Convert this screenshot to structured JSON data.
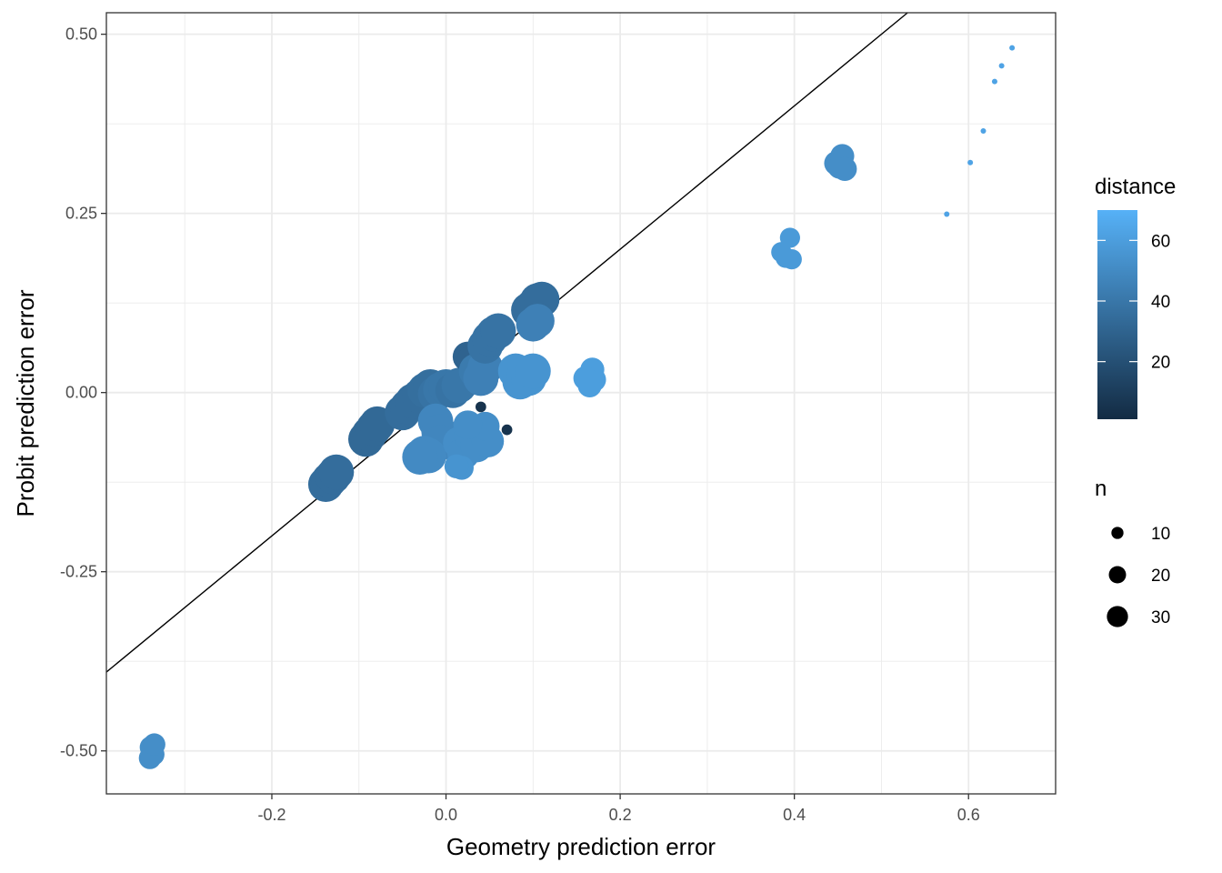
{
  "chart_data": {
    "type": "scatter",
    "xlabel": "Geometry prediction error",
    "ylabel": "Probit prediction error",
    "xlim": [
      -0.39,
      0.7
    ],
    "ylim": [
      -0.56,
      0.53
    ],
    "x_ticks": [
      -0.2,
      0.0,
      0.2,
      0.4,
      0.6
    ],
    "x_tick_labels": [
      "-0.2",
      "0.0",
      "0.2",
      "0.4",
      "0.6"
    ],
    "y_ticks": [
      -0.5,
      -0.25,
      0.0,
      0.25,
      0.5
    ],
    "y_tick_labels": [
      "-0.50",
      "-0.25",
      "0.00",
      "0.25",
      "0.50"
    ],
    "grid": true,
    "reference_line": {
      "intercept": 0,
      "slope": 1
    },
    "color_legend": {
      "title": "distance",
      "breaks": [
        20,
        40,
        60
      ],
      "break_labels": [
        "20",
        "40",
        "60"
      ],
      "range": [
        1,
        70
      ],
      "low_color": "#132b43",
      "high_color": "#56b1f7"
    },
    "size_legend": {
      "title": "n",
      "breaks": [
        10,
        20,
        30
      ],
      "break_labels": [
        "10",
        "20",
        "30"
      ],
      "range": [
        1,
        35
      ]
    },
    "legend_position": "right",
    "points": [
      {
        "x": -0.34,
        "y": -0.51,
        "n": 12,
        "distance": 52
      },
      {
        "x": -0.339,
        "y": -0.495,
        "n": 12,
        "distance": 52
      },
      {
        "x": -0.336,
        "y": -0.505,
        "n": 12,
        "distance": 52
      },
      {
        "x": -0.335,
        "y": -0.491,
        "n": 12,
        "distance": 52
      },
      {
        "x": -0.138,
        "y": -0.128,
        "n": 30,
        "distance": 35
      },
      {
        "x": -0.134,
        "y": -0.122,
        "n": 30,
        "distance": 35
      },
      {
        "x": -0.13,
        "y": -0.117,
        "n": 30,
        "distance": 35
      },
      {
        "x": -0.126,
        "y": -0.111,
        "n": 30,
        "distance": 35
      },
      {
        "x": -0.092,
        "y": -0.065,
        "n": 30,
        "distance": 33
      },
      {
        "x": -0.088,
        "y": -0.058,
        "n": 30,
        "distance": 33
      },
      {
        "x": -0.083,
        "y": -0.05,
        "n": 30,
        "distance": 33
      },
      {
        "x": -0.079,
        "y": -0.044,
        "n": 30,
        "distance": 33
      },
      {
        "x": -0.05,
        "y": -0.028,
        "n": 30,
        "distance": 35
      },
      {
        "x": -0.044,
        "y": -0.02,
        "n": 30,
        "distance": 35
      },
      {
        "x": -0.038,
        "y": -0.012,
        "n": 30,
        "distance": 35
      },
      {
        "x": -0.03,
        "y": -0.005,
        "n": 30,
        "distance": 35
      },
      {
        "x": -0.024,
        "y": 0.003,
        "n": 30,
        "distance": 36
      },
      {
        "x": -0.018,
        "y": 0.008,
        "n": 30,
        "distance": 36
      },
      {
        "x": -0.012,
        "y": -0.002,
        "n": 30,
        "distance": 38
      },
      {
        "x": -0.006,
        "y": 0.004,
        "n": 30,
        "distance": 40
      },
      {
        "x": 0.0,
        "y": 0.008,
        "n": 30,
        "distance": 40
      },
      {
        "x": 0.008,
        "y": 0.003,
        "n": 30,
        "distance": 38
      },
      {
        "x": 0.015,
        "y": 0.01,
        "n": 30,
        "distance": 40
      },
      {
        "x": -0.012,
        "y": -0.04,
        "n": 30,
        "distance": 48
      },
      {
        "x": -0.008,
        "y": -0.055,
        "n": 30,
        "distance": 48
      },
      {
        "x": -0.006,
        "y": -0.07,
        "n": 30,
        "distance": 48
      },
      {
        "x": -0.02,
        "y": -0.088,
        "n": 30,
        "distance": 50
      },
      {
        "x": -0.025,
        "y": -0.085,
        "n": 30,
        "distance": 50
      },
      {
        "x": -0.03,
        "y": -0.09,
        "n": 30,
        "distance": 50
      },
      {
        "x": 0.015,
        "y": -0.07,
        "n": 25,
        "distance": 52
      },
      {
        "x": 0.02,
        "y": -0.085,
        "n": 25,
        "distance": 52
      },
      {
        "x": 0.028,
        "y": -0.06,
        "n": 25,
        "distance": 52
      },
      {
        "x": 0.035,
        "y": -0.075,
        "n": 25,
        "distance": 52
      },
      {
        "x": 0.042,
        "y": -0.058,
        "n": 25,
        "distance": 52
      },
      {
        "x": 0.048,
        "y": -0.068,
        "n": 25,
        "distance": 52
      },
      {
        "x": 0.045,
        "y": -0.047,
        "n": 20,
        "distance": 52
      },
      {
        "x": 0.025,
        "y": -0.045,
        "n": 20,
        "distance": 52
      },
      {
        "x": 0.018,
        "y": -0.105,
        "n": 14,
        "distance": 55
      },
      {
        "x": 0.012,
        "y": -0.103,
        "n": 14,
        "distance": 55
      },
      {
        "x": 0.025,
        "y": 0.05,
        "n": 22,
        "distance": 30
      },
      {
        "x": 0.03,
        "y": 0.045,
        "n": 22,
        "distance": 30
      },
      {
        "x": 0.035,
        "y": 0.03,
        "n": 30,
        "distance": 42
      },
      {
        "x": 0.04,
        "y": 0.02,
        "n": 30,
        "distance": 45
      },
      {
        "x": 0.045,
        "y": 0.035,
        "n": 30,
        "distance": 45
      },
      {
        "x": 0.045,
        "y": 0.065,
        "n": 30,
        "distance": 38
      },
      {
        "x": 0.05,
        "y": 0.075,
        "n": 30,
        "distance": 38
      },
      {
        "x": 0.055,
        "y": 0.082,
        "n": 30,
        "distance": 38
      },
      {
        "x": 0.06,
        "y": 0.086,
        "n": 30,
        "distance": 38
      },
      {
        "x": 0.08,
        "y": 0.03,
        "n": 30,
        "distance": 55
      },
      {
        "x": 0.085,
        "y": 0.015,
        "n": 30,
        "distance": 55
      },
      {
        "x": 0.09,
        "y": 0.025,
        "n": 30,
        "distance": 55
      },
      {
        "x": 0.095,
        "y": 0.02,
        "n": 30,
        "distance": 55
      },
      {
        "x": 0.1,
        "y": 0.03,
        "n": 30,
        "distance": 55
      },
      {
        "x": 0.095,
        "y": 0.115,
        "n": 30,
        "distance": 35
      },
      {
        "x": 0.1,
        "y": 0.12,
        "n": 30,
        "distance": 35
      },
      {
        "x": 0.105,
        "y": 0.128,
        "n": 30,
        "distance": 35
      },
      {
        "x": 0.11,
        "y": 0.13,
        "n": 30,
        "distance": 35
      },
      {
        "x": 0.1,
        "y": 0.095,
        "n": 28,
        "distance": 45
      },
      {
        "x": 0.105,
        "y": 0.1,
        "n": 28,
        "distance": 45
      },
      {
        "x": 0.04,
        "y": -0.02,
        "n": 3,
        "distance": 5
      },
      {
        "x": 0.07,
        "y": -0.052,
        "n": 3,
        "distance": 5
      },
      {
        "x": 0.165,
        "y": 0.01,
        "n": 14,
        "distance": 60
      },
      {
        "x": 0.17,
        "y": 0.018,
        "n": 14,
        "distance": 60
      },
      {
        "x": 0.168,
        "y": 0.032,
        "n": 14,
        "distance": 60
      },
      {
        "x": 0.16,
        "y": 0.02,
        "n": 14,
        "distance": 60
      },
      {
        "x": 0.385,
        "y": 0.196,
        "n": 10,
        "distance": 58
      },
      {
        "x": 0.39,
        "y": 0.188,
        "n": 10,
        "distance": 58
      },
      {
        "x": 0.397,
        "y": 0.186,
        "n": 10,
        "distance": 58
      },
      {
        "x": 0.395,
        "y": 0.216,
        "n": 10,
        "distance": 58
      },
      {
        "x": 0.448,
        "y": 0.32,
        "n": 14,
        "distance": 52
      },
      {
        "x": 0.452,
        "y": 0.315,
        "n": 14,
        "distance": 52
      },
      {
        "x": 0.455,
        "y": 0.33,
        "n": 14,
        "distance": 52
      },
      {
        "x": 0.458,
        "y": 0.312,
        "n": 14,
        "distance": 52
      },
      {
        "x": 0.575,
        "y": 0.249,
        "n": 1,
        "distance": 63
      },
      {
        "x": 0.602,
        "y": 0.321,
        "n": 1,
        "distance": 63
      },
      {
        "x": 0.617,
        "y": 0.365,
        "n": 1,
        "distance": 63
      },
      {
        "x": 0.63,
        "y": 0.434,
        "n": 1,
        "distance": 63
      },
      {
        "x": 0.638,
        "y": 0.456,
        "n": 1,
        "distance": 63
      },
      {
        "x": 0.65,
        "y": 0.481,
        "n": 1,
        "distance": 63
      }
    ]
  }
}
